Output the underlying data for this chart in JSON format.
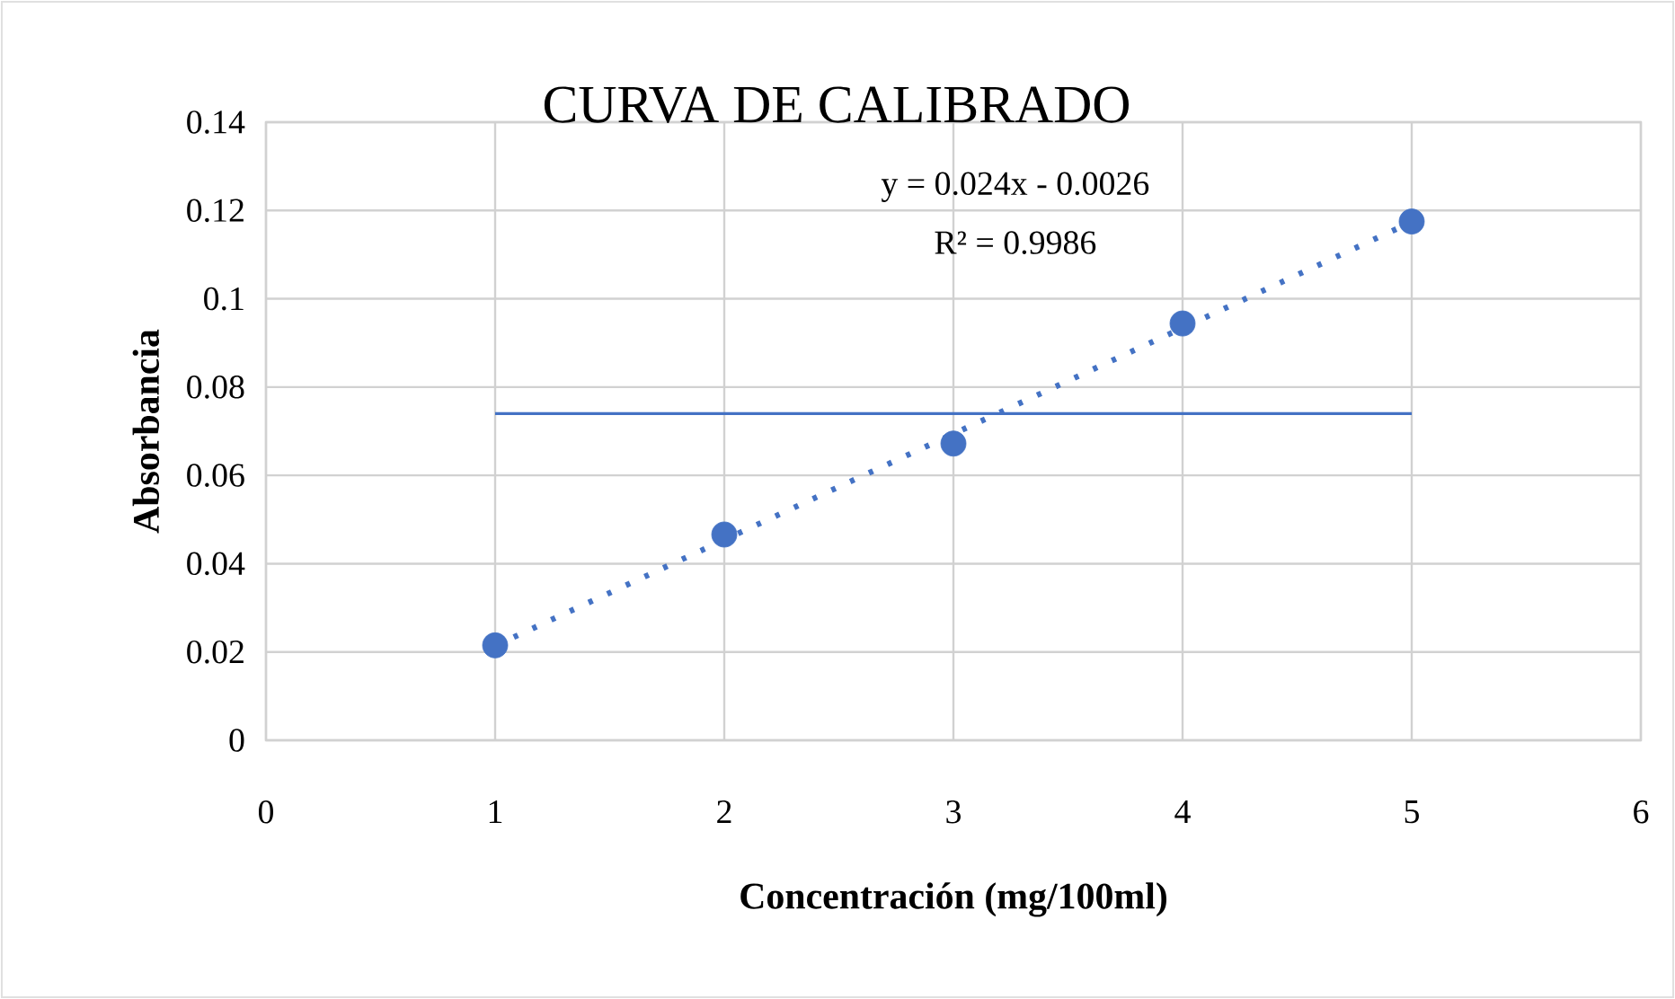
{
  "chart_data": {
    "type": "scatter",
    "title": "CURVA DE CALIBRADO",
    "xlabel": "Concentración (mg/100ml)",
    "ylabel": "Absorbancia",
    "x": [
      1,
      2,
      3,
      4,
      5
    ],
    "xlim": [
      0,
      6
    ],
    "xticks": [
      0,
      1,
      2,
      3,
      4,
      5,
      6
    ],
    "ylim": [
      0,
      0.14
    ],
    "yticks": [
      0,
      0.02,
      0.04,
      0.06,
      0.08,
      0.1,
      0.12,
      0.14
    ],
    "grid": true,
    "series": [
      {
        "color": "#4472c4",
        "marker": "circle",
        "values": [
          0.0215,
          0.0466,
          0.0672,
          0.0944,
          0.1175
        ]
      },
      {
        "type": "line",
        "values": [
          0.0214,
          0.0454,
          0.0694,
          0.0934,
          0.1174
        ],
        "color": "#4472c4",
        "line_style": "dotted",
        "marker": "none"
      },
      {
        "type": "line",
        "values": [
          0.074,
          0.074,
          0.074,
          0.074,
          0.074
        ],
        "color": "#4472c4",
        "line_style": "solid",
        "marker": "none"
      }
    ],
    "annotations": [
      "y = 0.024x - 0.0026",
      "R² = 0.9986"
    ]
  }
}
